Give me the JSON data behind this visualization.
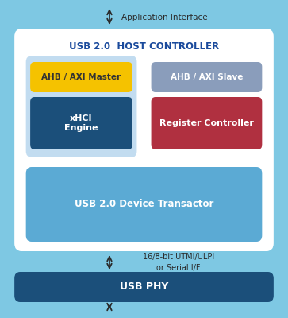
{
  "title": "USB 2.0  HOST CONTROLLER",
  "bg_outer": "#7EC8E3",
  "bg_white_box": "#FFFFFF",
  "bg_light_blue_inner": "#C2DCF0",
  "color_usb_transactor": "#5BAAD4",
  "color_usb_phy": "#1B4F7A",
  "color_ahb_master": "#F5C200",
  "color_xhci": "#1B4F7A",
  "color_ahb_slave": "#8A9DBB",
  "color_reg_ctrl": "#B03040",
  "text_color_dark": "#333333",
  "text_color_white": "#FFFFFF",
  "text_color_blue_title": "#1A4A9C",
  "app_interface_label": "Application Interface",
  "utmi_label": "16/8-bit UTMI/ULPI\nor Serial I/F",
  "usb_phy_label": "USB PHY",
  "transactor_label": "USB 2.0 Device Transactor",
  "ahb_master_label": "AHB / AXI Master",
  "xhci_label": "xHCI\nEngine",
  "ahb_slave_label": "AHB / AXI Slave",
  "reg_ctrl_label": "Register Controller"
}
